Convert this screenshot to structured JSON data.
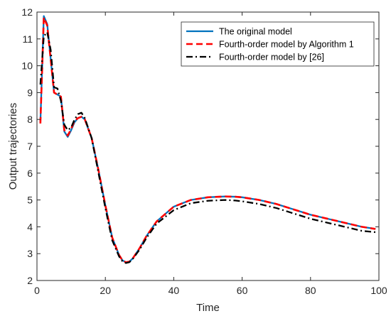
{
  "chart_data": {
    "type": "line",
    "title": "",
    "xlabel": "Time",
    "ylabel": "Output trajectories",
    "xlim": [
      0,
      100
    ],
    "ylim": [
      2,
      12
    ],
    "xticks": [
      0,
      20,
      40,
      60,
      80,
      100
    ],
    "yticks": [
      2,
      3,
      4,
      5,
      6,
      7,
      8,
      9,
      10,
      11,
      12
    ],
    "legend_position": "top-right",
    "grid": false,
    "series": [
      {
        "name": "The original model",
        "color": "#0072BD",
        "style": "solid",
        "x": [
          1,
          2,
          3,
          5,
          7,
          8,
          9,
          10,
          11,
          12,
          13,
          14,
          16,
          18,
          20,
          22,
          24,
          25,
          26,
          27,
          28,
          30,
          32,
          35,
          40,
          45,
          50,
          55,
          58,
          60,
          65,
          70,
          75,
          80,
          85,
          90,
          95,
          99
        ],
        "y": [
          7.9,
          11.85,
          11.55,
          9.0,
          8.85,
          7.55,
          7.35,
          7.6,
          7.9,
          8.05,
          8.1,
          8.0,
          7.3,
          6.1,
          4.8,
          3.6,
          2.95,
          2.75,
          2.68,
          2.7,
          2.82,
          3.2,
          3.65,
          4.2,
          4.75,
          5.0,
          5.1,
          5.13,
          5.12,
          5.1,
          5.0,
          4.85,
          4.65,
          4.45,
          4.3,
          4.15,
          4.0,
          3.92
        ]
      },
      {
        "name": "Fourth-order model by Algorithm 1",
        "color": "#FF0000",
        "style": "dashed",
        "x": [
          1,
          2,
          3,
          5,
          7,
          8,
          9,
          10,
          11,
          12,
          13,
          14,
          16,
          18,
          20,
          22,
          24,
          25,
          26,
          27,
          28,
          30,
          32,
          35,
          40,
          45,
          50,
          55,
          58,
          60,
          65,
          70,
          75,
          80,
          85,
          90,
          95,
          99
        ],
        "y": [
          7.85,
          11.8,
          11.5,
          9.0,
          8.85,
          7.6,
          7.4,
          7.65,
          7.95,
          8.05,
          8.1,
          8.0,
          7.3,
          6.1,
          4.8,
          3.6,
          2.95,
          2.75,
          2.68,
          2.7,
          2.82,
          3.2,
          3.65,
          4.2,
          4.75,
          5.0,
          5.1,
          5.13,
          5.12,
          5.1,
          5.0,
          4.85,
          4.65,
          4.45,
          4.3,
          4.15,
          4.0,
          3.92
        ]
      },
      {
        "name": "Fourth-order model by [26]",
        "color": "#000000",
        "style": "dashdot",
        "x": [
          1,
          2,
          3,
          4,
          5,
          6,
          7,
          8,
          9,
          10,
          11,
          12,
          13,
          14,
          16,
          18,
          20,
          22,
          24,
          25,
          26,
          27,
          28,
          30,
          32,
          35,
          40,
          45,
          50,
          55,
          58,
          60,
          65,
          70,
          75,
          80,
          85,
          90,
          95,
          99
        ],
        "y": [
          9.3,
          11.1,
          11.25,
          10.6,
          9.2,
          9.15,
          8.7,
          7.8,
          7.6,
          7.7,
          8.0,
          8.2,
          8.25,
          8.05,
          7.3,
          6.0,
          4.7,
          3.5,
          2.9,
          2.72,
          2.65,
          2.68,
          2.8,
          3.15,
          3.58,
          4.12,
          4.62,
          4.88,
          4.97,
          5.0,
          4.98,
          4.95,
          4.85,
          4.7,
          4.5,
          4.3,
          4.15,
          4.0,
          3.85,
          3.8
        ]
      }
    ]
  }
}
